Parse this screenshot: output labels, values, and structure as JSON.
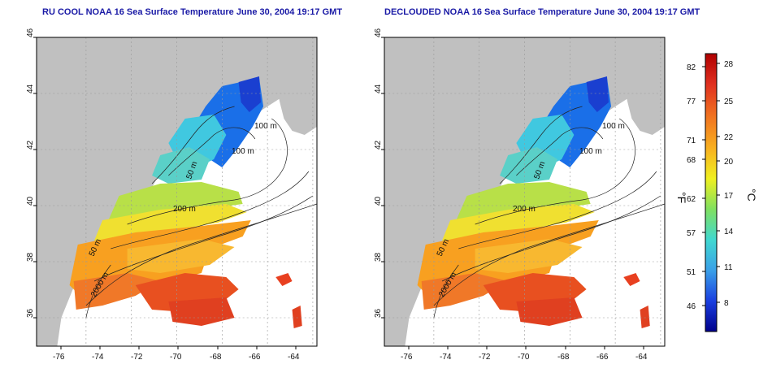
{
  "panels": [
    {
      "title": "RU COOL NOAA 16 Sea Surface Temperature June 30, 2004 19:17 GMT",
      "lon_ticks": [
        "-76",
        "-74",
        "-72",
        "-70",
        "-68",
        "-66",
        "-64"
      ],
      "lat_ticks": [
        "36",
        "38",
        "40",
        "42",
        "44",
        "46"
      ],
      "contour_labels": [
        "100 m",
        "100 m",
        "50 m",
        "200 m",
        "50 m",
        "2000 m"
      ]
    },
    {
      "title": "DECLOUDED NOAA 16 Sea Surface Temperature June 30, 2004 19:17 GMT",
      "lon_ticks": [
        "-76",
        "-74",
        "-72",
        "-70",
        "-68",
        "-66",
        "-64"
      ],
      "lat_ticks": [
        "36",
        "38",
        "40",
        "42",
        "44",
        "46"
      ],
      "contour_labels": [
        "100 m",
        "100 m",
        "50 m",
        "200 m",
        "50 m",
        "2000 m"
      ]
    }
  ],
  "colorbar": {
    "fahrenheit_label": "°F",
    "celsius_label": "°C",
    "fahrenheit_ticks": [
      "82",
      "77",
      "71",
      "68",
      "62",
      "57",
      "51",
      "46"
    ],
    "celsius_ticks": [
      "28",
      "25",
      "22",
      "20",
      "17",
      "14",
      "11",
      "8"
    ],
    "colors": [
      "#00008b",
      "#1a3fe0",
      "#3aa0e8",
      "#40d8d0",
      "#80e060",
      "#f0f020",
      "#f8b020",
      "#f07020",
      "#e03020",
      "#b00000"
    ]
  },
  "colors": {
    "land": "#c0c0c0",
    "water": "#ffffff",
    "title": "#1a1aa6"
  }
}
